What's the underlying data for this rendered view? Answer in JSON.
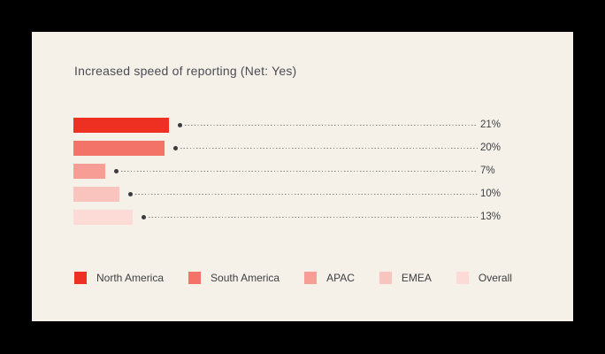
{
  "frame": {
    "background": "#000000",
    "panel_background": "#f5f1e8"
  },
  "chart_data": {
    "type": "bar",
    "orientation": "horizontal",
    "title": "Increased speed of reporting (Net: Yes)",
    "categories": [
      "North America",
      "South America",
      "APAC",
      "EMEA",
      "Overall"
    ],
    "values": [
      21,
      20,
      7,
      10,
      13
    ],
    "value_labels": [
      "21%",
      "20%",
      "7%",
      "10%",
      "13%"
    ],
    "colors": [
      "#ee3023",
      "#f37369",
      "#f89d96",
      "#f9c4be",
      "#fcdad6"
    ],
    "xlim": [
      0,
      100
    ],
    "grid": false,
    "legend_position": "bottom",
    "title_color": "#4b4b53",
    "text_color": "#3e3e45",
    "leader_dot_color": "#3a3a41",
    "leader_line_color": "#85817a"
  }
}
